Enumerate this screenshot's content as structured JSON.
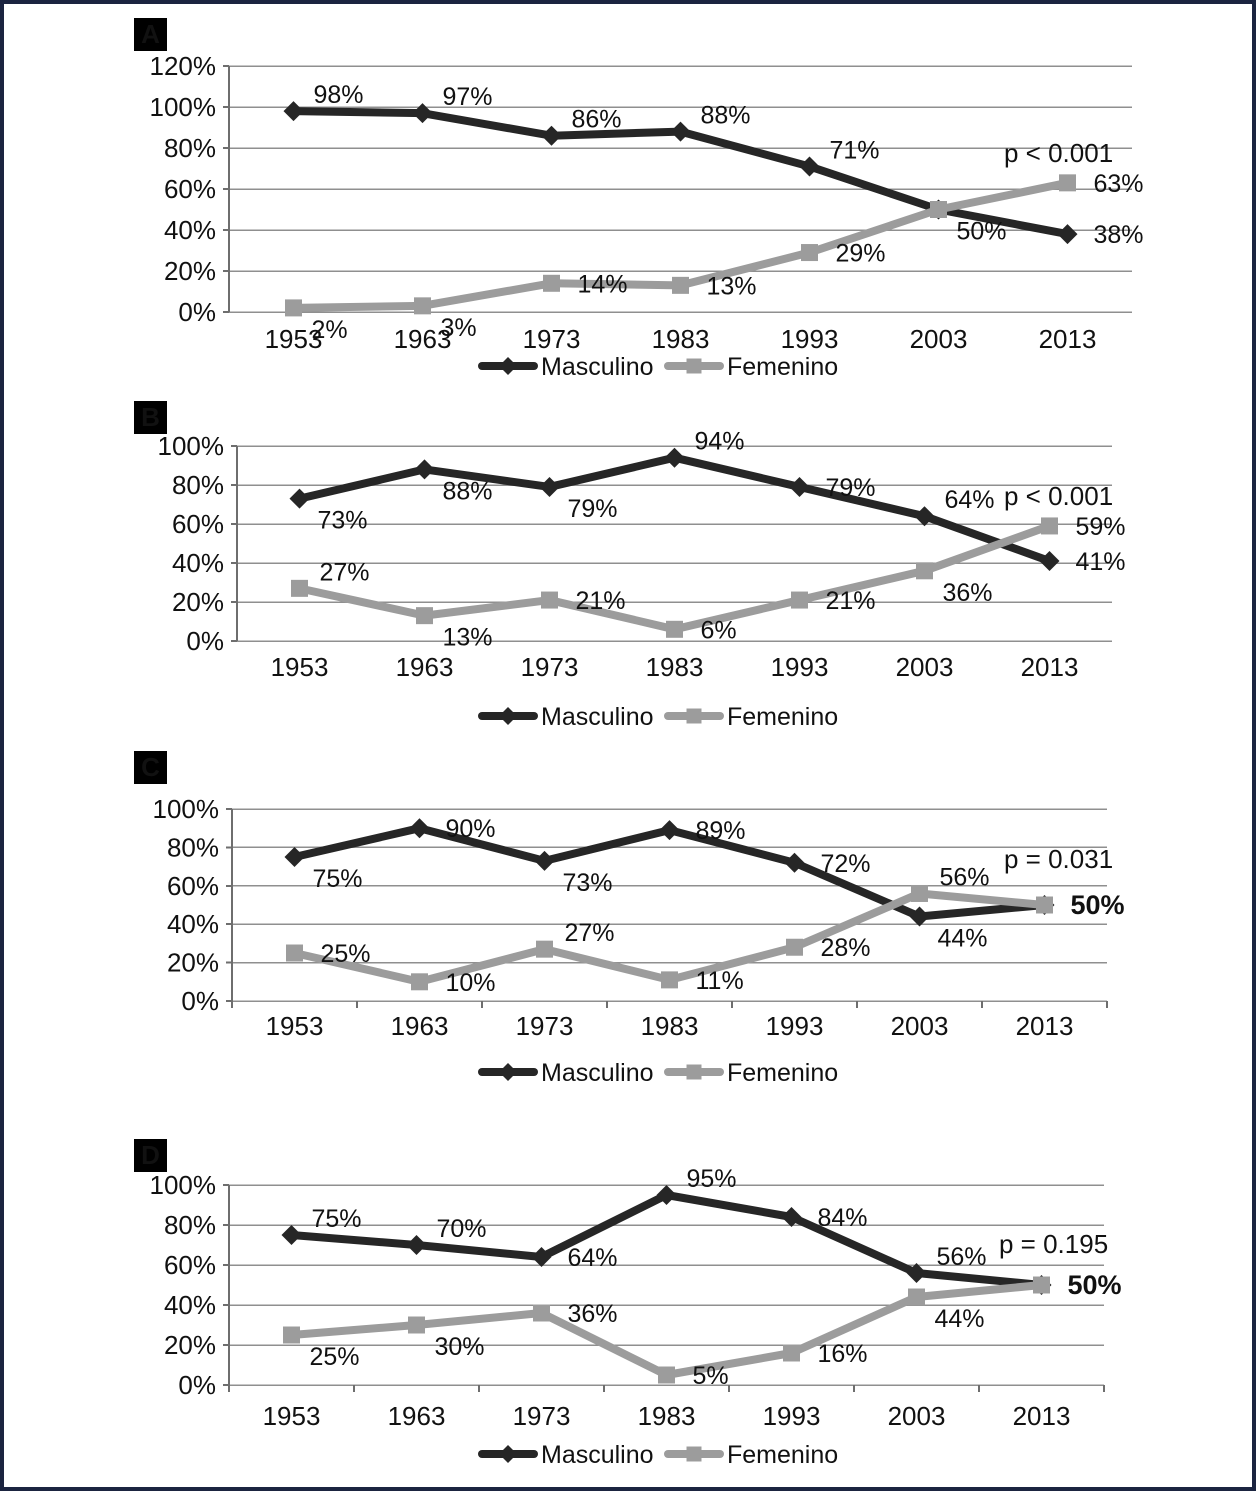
{
  "figure": {
    "background": "#ffffff",
    "border_color": "#1b2440",
    "series_colors": {
      "masculino": "#262626",
      "femenino": "#9c9c9c"
    },
    "grid_color": "#8f8f8f",
    "axis_color": "#6e6e6e"
  },
  "chart_data": [
    {
      "panel": "A",
      "type": "line",
      "title": "",
      "p_label": "p < 0.001",
      "x": [
        "1953",
        "1963",
        "1973",
        "1983",
        "1993",
        "2003",
        "2013"
      ],
      "y_axis": {
        "max": 120,
        "step": 20,
        "tick_labels": [
          "0%",
          "20%",
          "40%",
          "60%",
          "80%",
          "100%",
          "120%"
        ]
      },
      "legend": [
        "Masculino",
        "Femenino"
      ],
      "series": [
        {
          "name": "Masculino",
          "marker": "diamond",
          "color_key": "masculino",
          "values": [
            98,
            97,
            86,
            88,
            71,
            50,
            38
          ],
          "labels": [
            "98%",
            "97%",
            "86%",
            "88%",
            "71%",
            "50%",
            "38%"
          ],
          "label_pos": [
            "AR",
            "AR",
            "AR",
            "AR",
            "AR",
            "BR",
            "R"
          ],
          "label_bold": [
            false,
            false,
            false,
            false,
            false,
            false,
            false
          ]
        },
        {
          "name": "Femenino",
          "marker": "square",
          "color_key": "femenino",
          "values": [
            2,
            3,
            14,
            13,
            29,
            50,
            63
          ],
          "labels": [
            "2%",
            "3%",
            "14%",
            "13%",
            "29%",
            "",
            "63%"
          ],
          "label_pos": [
            "BR",
            "BR",
            "R",
            "R",
            "R",
            "R",
            "R"
          ],
          "label_bold": [
            false,
            false,
            false,
            false,
            false,
            false,
            false
          ]
        }
      ]
    },
    {
      "panel": "B",
      "type": "line",
      "title": "",
      "p_label": "p < 0.001",
      "x": [
        "1953",
        "1963",
        "1973",
        "1983",
        "1993",
        "2003",
        "2013"
      ],
      "y_axis": {
        "max": 100,
        "step": 20,
        "tick_labels": [
          "0%",
          "20%",
          "40%",
          "60%",
          "80%",
          "100%"
        ]
      },
      "legend": [
        "Masculino",
        "Femenino"
      ],
      "series": [
        {
          "name": "Masculino",
          "marker": "diamond",
          "color_key": "masculino",
          "values": [
            73,
            88,
            79,
            94,
            79,
            64,
            41
          ],
          "labels": [
            "73%",
            "88%",
            "79%",
            "94%",
            "79%",
            "64%",
            "41%"
          ],
          "label_pos": [
            "BR",
            "BR",
            "BR",
            "AR",
            "R",
            "AR",
            "R"
          ],
          "label_bold": [
            false,
            false,
            false,
            false,
            false,
            false,
            false
          ]
        },
        {
          "name": "Femenino",
          "marker": "square",
          "color_key": "femenino",
          "values": [
            27,
            13,
            21,
            6,
            21,
            36,
            59
          ],
          "labels": [
            "27%",
            "13%",
            "21%",
            "6%",
            "21%",
            "36%",
            "59%"
          ],
          "label_pos": [
            "AR",
            "BR",
            "R",
            "R",
            "R",
            "BR",
            "R"
          ],
          "label_bold": [
            false,
            false,
            false,
            false,
            false,
            false,
            false
          ]
        }
      ]
    },
    {
      "panel": "C",
      "type": "line",
      "title": "",
      "p_label": "p = 0.031",
      "x": [
        "1953",
        "1963",
        "1973",
        "1983",
        "1993",
        "2003",
        "2013"
      ],
      "y_axis": {
        "max": 100,
        "step": 20,
        "tick_labels": [
          "0%",
          "20%",
          "40%",
          "60%",
          "80%",
          "100%"
        ]
      },
      "legend": [
        "Masculino",
        "Femenino"
      ],
      "series": [
        {
          "name": "Masculino",
          "marker": "diamond",
          "color_key": "masculino",
          "values": [
            75,
            90,
            73,
            89,
            72,
            44,
            50
          ],
          "labels": [
            "75%",
            "90%",
            "73%",
            "89%",
            "72%",
            "44%",
            "50%"
          ],
          "label_pos": [
            "BR",
            "R",
            "BR",
            "R",
            "R",
            "BR",
            "R"
          ],
          "label_bold": [
            false,
            false,
            false,
            false,
            false,
            false,
            true
          ]
        },
        {
          "name": "Femenino",
          "marker": "square",
          "color_key": "femenino",
          "values": [
            25,
            10,
            27,
            11,
            28,
            56,
            50
          ],
          "labels": [
            "25%",
            "10%",
            "27%",
            "11%",
            "28%",
            "56%",
            ""
          ],
          "label_pos": [
            "R",
            "R",
            "AR",
            "R",
            "R",
            "AR",
            "R"
          ],
          "label_bold": [
            false,
            false,
            false,
            false,
            false,
            false,
            false
          ]
        }
      ]
    },
    {
      "panel": "D",
      "type": "line",
      "title": "",
      "p_label": "p = 0.195",
      "x": [
        "1953",
        "1963",
        "1973",
        "1983",
        "1993",
        "2003",
        "2013"
      ],
      "y_axis": {
        "max": 100,
        "step": 20,
        "tick_labels": [
          "0%",
          "20%",
          "40%",
          "60%",
          "80%",
          "100%"
        ]
      },
      "legend": [
        "Masculino",
        "Femenino"
      ],
      "series": [
        {
          "name": "Masculino",
          "marker": "diamond",
          "color_key": "masculino",
          "values": [
            75,
            70,
            64,
            95,
            84,
            56,
            50
          ],
          "labels": [
            "75%",
            "70%",
            "64%",
            "95%",
            "84%",
            "56%",
            "50%"
          ],
          "label_pos": [
            "AR",
            "AR",
            "R",
            "AR",
            "R",
            "AR",
            "R"
          ],
          "label_bold": [
            false,
            false,
            false,
            false,
            false,
            false,
            true
          ]
        },
        {
          "name": "Femenino",
          "marker": "square",
          "color_key": "femenino",
          "values": [
            25,
            30,
            36,
            5,
            16,
            44,
            50
          ],
          "labels": [
            "25%",
            "30%",
            "36%",
            "5%",
            "16%",
            "44%",
            ""
          ],
          "label_pos": [
            "BR",
            "BR",
            "R",
            "R",
            "R",
            "BR",
            "R"
          ],
          "label_bold": [
            false,
            false,
            false,
            false,
            false,
            false,
            false
          ]
        }
      ]
    }
  ]
}
